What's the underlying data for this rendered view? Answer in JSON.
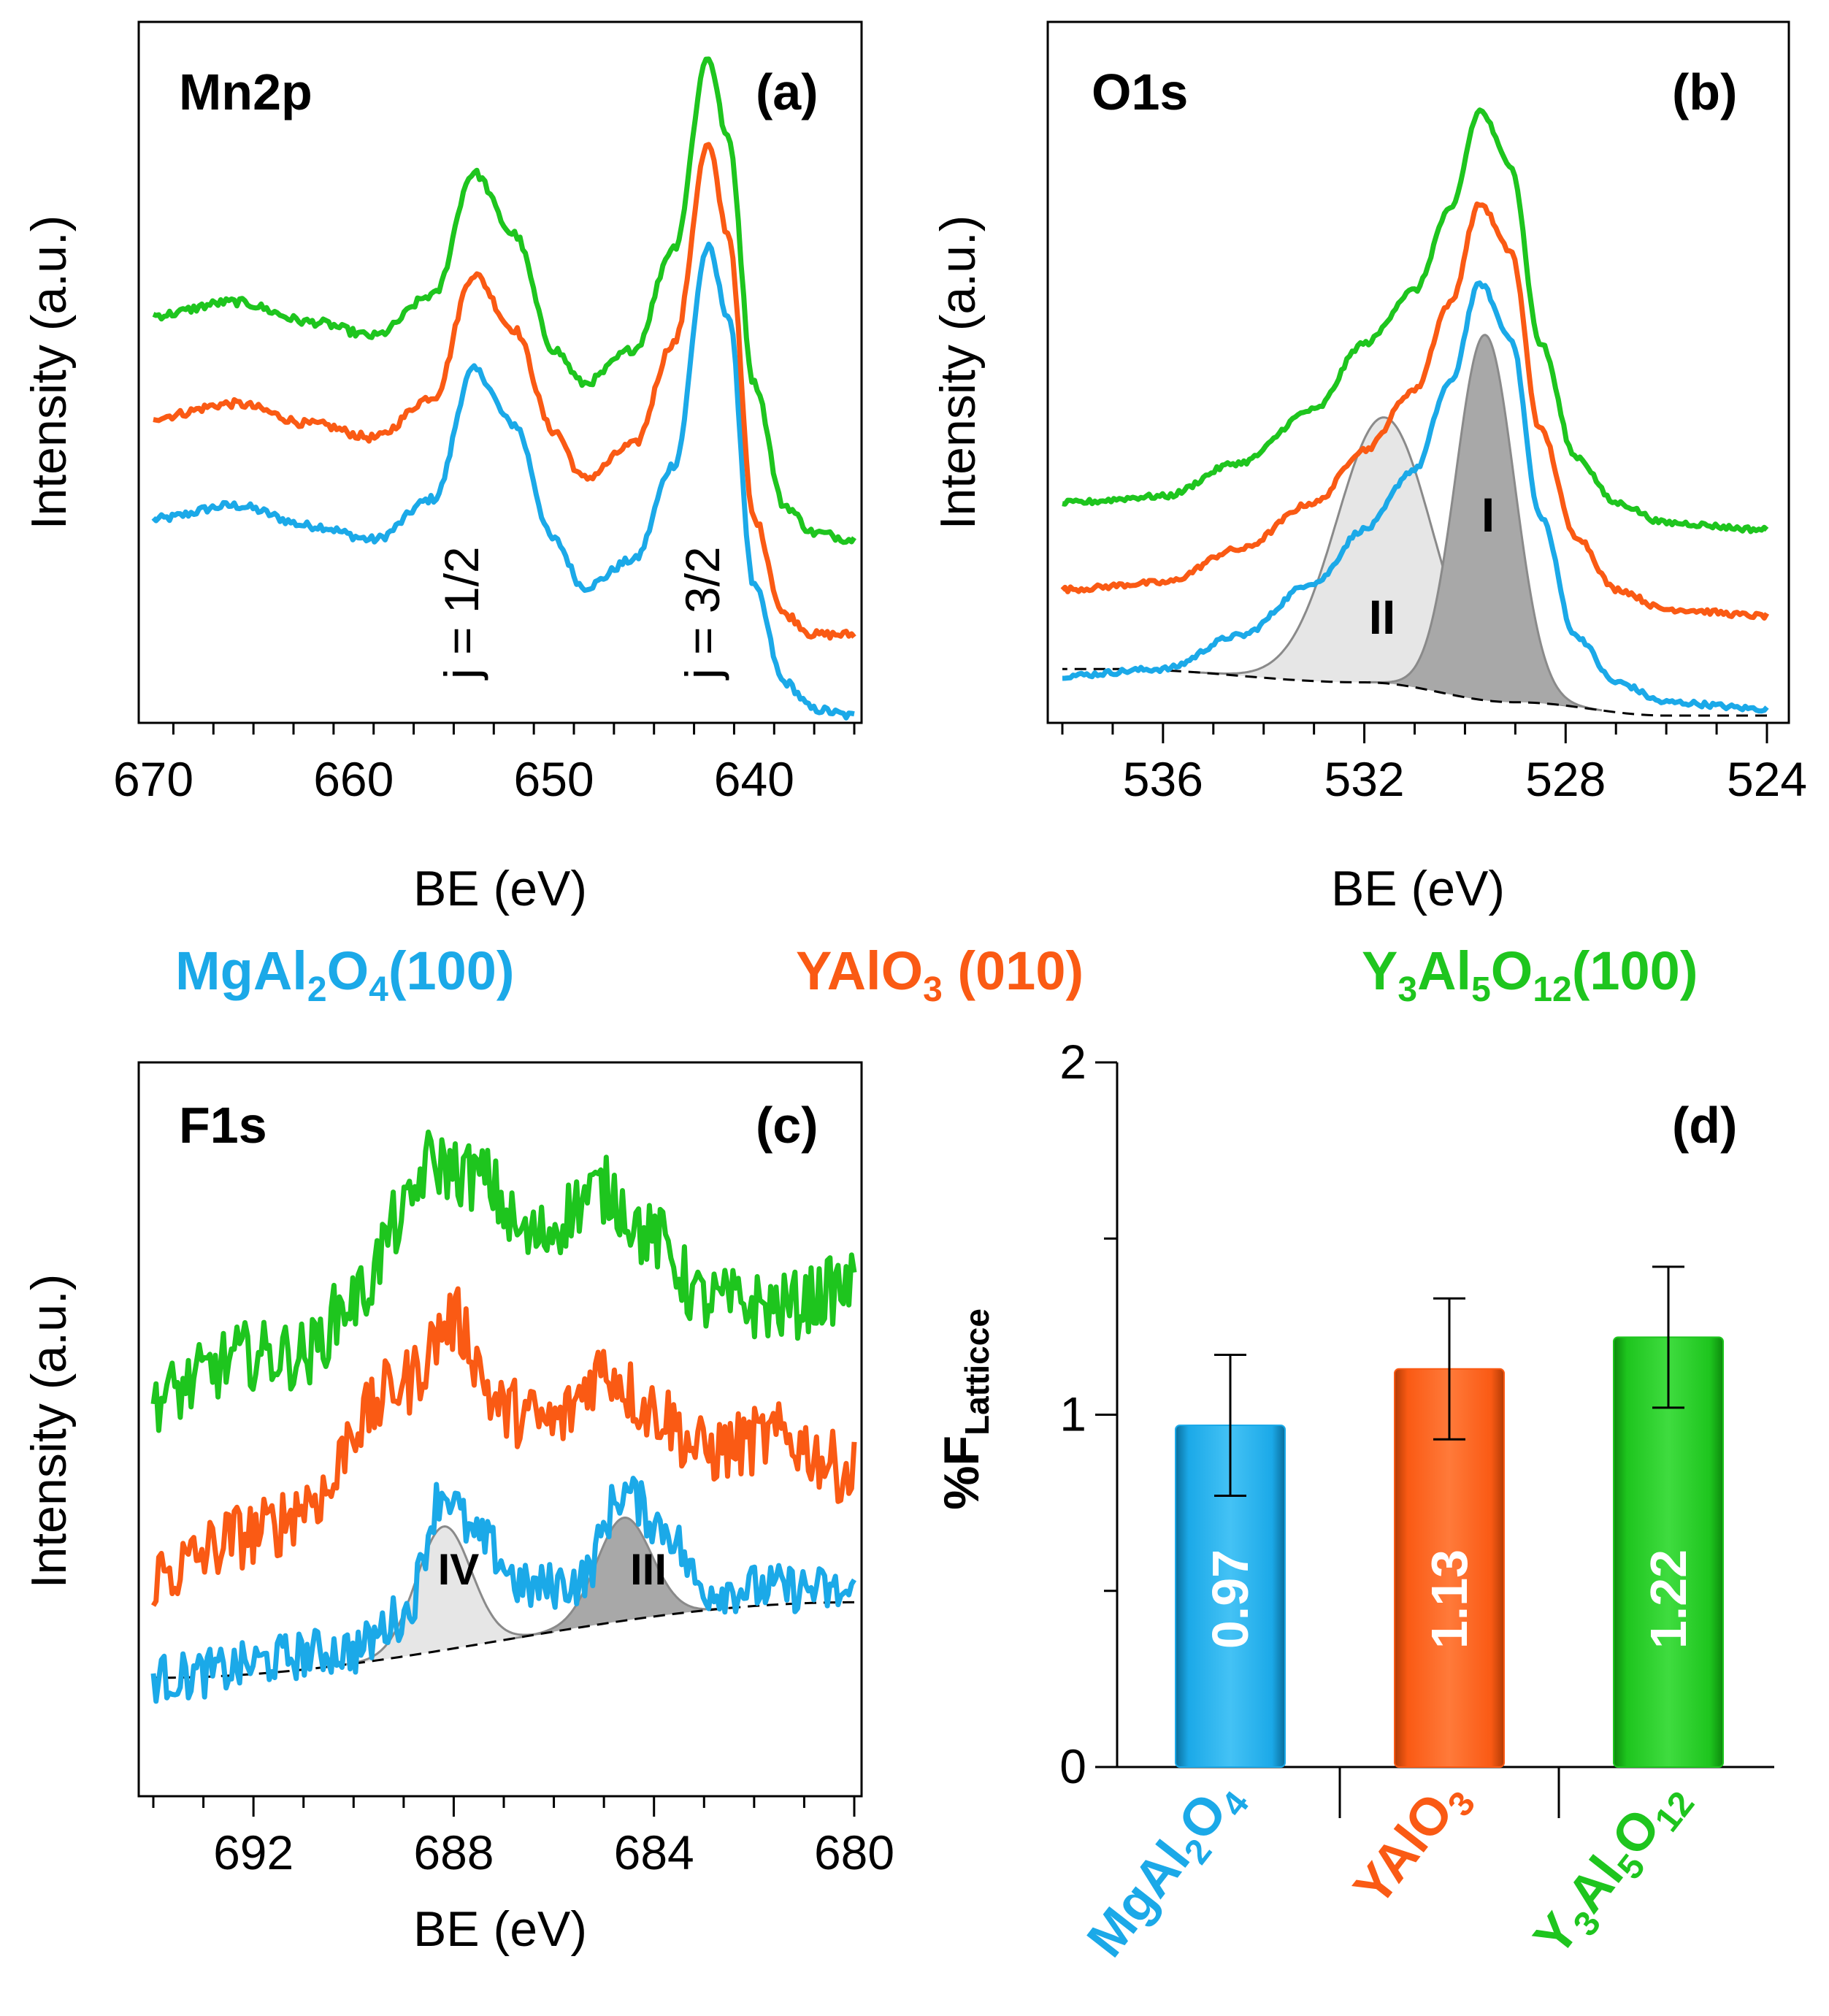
{
  "colors": {
    "mgal2o4": "#1ba9e8",
    "yalo3": "#fa5a14",
    "yag": "#1ec51e",
    "axis": "#000000",
    "fill_light": "#e6e6e6",
    "fill_dark": "#a8a8a8",
    "fit_line": "#8a8a8a"
  },
  "legend": {
    "mgal2o4": {
      "base": "MgAl",
      "s1": "2",
      "mid": "O",
      "s2": "4",
      "tail": "(100)"
    },
    "yalo3": {
      "base": "YAlO",
      "s1": "3",
      "tail": " (010)"
    },
    "yag": {
      "base": "Y",
      "s1": "3",
      "mid1": "Al",
      "s2": "5",
      "mid2": "O",
      "s3": "12",
      "tail": "(100)"
    }
  },
  "chart_data": [
    {
      "id": "a",
      "type": "line",
      "panel_label": "(a)",
      "element_label": "Mn2p",
      "xlabel": "BE (eV)",
      "ylabel": "Intensity (a.u.)",
      "xlim": [
        670,
        635
      ],
      "xticks": [
        670,
        660,
        650,
        640
      ],
      "xtick_labels": [
        "670",
        "660",
        "650",
        "640"
      ],
      "minor_step": 2,
      "ylim": [
        0,
        1
      ],
      "annotations": [
        {
          "text": "j = 1/2",
          "x": 654,
          "y": 0.05,
          "rotation": -90
        },
        {
          "text": "j = 3/2",
          "x": 642.3,
          "y": 0.05,
          "rotation": -90
        }
      ],
      "series": [
        {
          "name": "MgAl2O4(100)",
          "color_key": "mgal2o4",
          "noise": 0.006,
          "points": [
            [
              670,
              0.3
            ],
            [
              666,
              0.32
            ],
            [
              662,
              0.29
            ],
            [
              659,
              0.27
            ],
            [
              656,
              0.33
            ],
            [
              654,
              0.52
            ],
            [
              652,
              0.44
            ],
            [
              650,
              0.27
            ],
            [
              648.5,
              0.2
            ],
            [
              646,
              0.24
            ],
            [
              644,
              0.38
            ],
            [
              642.3,
              0.7
            ],
            [
              641.3,
              0.6
            ],
            [
              640,
              0.2
            ],
            [
              638.5,
              0.06
            ],
            [
              637,
              0.02
            ],
            [
              635,
              0.01
            ]
          ]
        },
        {
          "name": "YAlO3 (010)",
          "color_key": "yalo3",
          "noise": 0.006,
          "points": [
            [
              670,
              0.45
            ],
            [
              666,
              0.47
            ],
            [
              662,
              0.44
            ],
            [
              659,
              0.42
            ],
            [
              656,
              0.48
            ],
            [
              654,
              0.66
            ],
            [
              652,
              0.58
            ],
            [
              650,
              0.43
            ],
            [
              648.5,
              0.36
            ],
            [
              646,
              0.41
            ],
            [
              644,
              0.56
            ],
            [
              642.3,
              0.85
            ],
            [
              641.3,
              0.72
            ],
            [
              640,
              0.3
            ],
            [
              638.5,
              0.16
            ],
            [
              637,
              0.13
            ],
            [
              635,
              0.13
            ]
          ]
        },
        {
          "name": "Y3Al5O12(100)",
          "color_key": "yag",
          "noise": 0.006,
          "points": [
            [
              670,
              0.6
            ],
            [
              666,
              0.62
            ],
            [
              662,
              0.59
            ],
            [
              659,
              0.57
            ],
            [
              656,
              0.63
            ],
            [
              654,
              0.81
            ],
            [
              652,
              0.72
            ],
            [
              650,
              0.55
            ],
            [
              648.5,
              0.5
            ],
            [
              646,
              0.55
            ],
            [
              644,
              0.7
            ],
            [
              642.3,
              0.98
            ],
            [
              641.3,
              0.86
            ],
            [
              640,
              0.5
            ],
            [
              638.5,
              0.32
            ],
            [
              637,
              0.28
            ],
            [
              635,
              0.27
            ]
          ]
        }
      ]
    },
    {
      "id": "b",
      "type": "line",
      "panel_label": "(b)",
      "element_label": "O1s",
      "xlabel": "BE (eV)",
      "ylabel": "Intensity (a.u.)",
      "xlim": [
        538,
        524
      ],
      "xticks": [
        536,
        532,
        528,
        524
      ],
      "xtick_labels": [
        "536",
        "532",
        "528",
        "524"
      ],
      "minor_step": 1,
      "ylim": [
        0,
        1
      ],
      "annotations": [
        {
          "text": "I",
          "x": 529.6,
          "y": 0.3
        },
        {
          "text": "II",
          "x": 531.6,
          "y": 0.14
        }
      ],
      "peaks": [
        {
          "label": "I",
          "center": 529.6,
          "height": 0.55,
          "sigma": 0.58,
          "fill_key": "fill_dark"
        },
        {
          "label": "II",
          "center": 531.6,
          "height": 0.4,
          "sigma": 0.95,
          "fill_key": "fill_light"
        }
      ],
      "baseline": {
        "points": [
          [
            537,
            0.07
          ],
          [
            532,
            0.05
          ],
          [
            529,
            0.02
          ],
          [
            526,
            0.0
          ]
        ]
      },
      "series": [
        {
          "name": "MgAl2O4(100)",
          "color_key": "mgal2o4",
          "noise": 0.004,
          "points": [
            [
              538,
              0.06
            ],
            [
              536,
              0.07
            ],
            [
              534.5,
              0.12
            ],
            [
              533,
              0.2
            ],
            [
              532,
              0.28
            ],
            [
              531,
              0.37
            ],
            [
              530.3,
              0.5
            ],
            [
              529.7,
              0.65
            ],
            [
              529.1,
              0.57
            ],
            [
              528.5,
              0.3
            ],
            [
              527.8,
              0.12
            ],
            [
              527,
              0.05
            ],
            [
              526,
              0.02
            ],
            [
              524,
              0.01
            ]
          ]
        },
        {
          "name": "YAlO3 (010)",
          "color_key": "yalo3",
          "noise": 0.004,
          "points": [
            [
              538,
              0.19
            ],
            [
              536,
              0.2
            ],
            [
              534.5,
              0.25
            ],
            [
              533,
              0.32
            ],
            [
              532,
              0.4
            ],
            [
              531,
              0.49
            ],
            [
              530.3,
              0.62
            ],
            [
              529.7,
              0.77
            ],
            [
              529.1,
              0.7
            ],
            [
              528.5,
              0.43
            ],
            [
              527.8,
              0.27
            ],
            [
              527,
              0.19
            ],
            [
              526,
              0.16
            ],
            [
              524,
              0.15
            ]
          ]
        },
        {
          "name": "Y3Al5O12(100)",
          "color_key": "yag",
          "noise": 0.004,
          "points": [
            [
              538,
              0.32
            ],
            [
              536,
              0.33
            ],
            [
              534.5,
              0.38
            ],
            [
              533,
              0.46
            ],
            [
              532,
              0.56
            ],
            [
              531,
              0.64
            ],
            [
              530.3,
              0.76
            ],
            [
              529.7,
              0.91
            ],
            [
              529.1,
              0.83
            ],
            [
              528.5,
              0.56
            ],
            [
              527.8,
              0.39
            ],
            [
              527,
              0.32
            ],
            [
              526,
              0.29
            ],
            [
              524,
              0.28
            ]
          ]
        }
      ]
    },
    {
      "id": "c",
      "type": "line",
      "panel_label": "(c)",
      "element_label": "F1s",
      "xlabel": "BE (eV)",
      "ylabel": "Intensity (a.u.)",
      "xlim": [
        694,
        680
      ],
      "xticks": [
        692,
        688,
        684,
        680
      ],
      "xtick_labels": [
        "692",
        "688",
        "684",
        "680"
      ],
      "minor_step": 1,
      "ylim": [
        0,
        1
      ],
      "annotations": [
        {
          "text": "IV",
          "x": 687.9,
          "y": 0.27
        },
        {
          "text": "III",
          "x": 684.3,
          "y": 0.27
        }
      ],
      "peaks": [
        {
          "label": "IV",
          "center": 688.2,
          "height": 0.18,
          "sigma": 0.55,
          "fill_key": "fill_light"
        },
        {
          "label": "III",
          "center": 684.6,
          "height": 0.15,
          "sigma": 0.55,
          "fill_key": "fill_dark"
        }
      ],
      "baseline": {
        "points": [
          [
            694,
            0.13
          ],
          [
            680,
            0.24
          ]
        ]
      },
      "series": [
        {
          "name": "MgAl2O4(100)",
          "color_key": "mgal2o4",
          "noise": 0.035,
          "points": [
            [
              694,
              0.13
            ],
            [
              690,
              0.17
            ],
            [
              689,
              0.22
            ],
            [
              688.2,
              0.4
            ],
            [
              687.5,
              0.33
            ],
            [
              686.5,
              0.26
            ],
            [
              685.5,
              0.27
            ],
            [
              684.6,
              0.4
            ],
            [
              683.8,
              0.35
            ],
            [
              683,
              0.26
            ],
            [
              681,
              0.26
            ],
            [
              680,
              0.25
            ]
          ]
        },
        {
          "name": "YAlO3 (010)",
          "color_key": "yalo3",
          "noise": 0.05,
          "points": [
            [
              694,
              0.28
            ],
            [
              692,
              0.34
            ],
            [
              690.5,
              0.4
            ],
            [
              690,
              0.5
            ],
            [
              689,
              0.56
            ],
            [
              688,
              0.65
            ],
            [
              687,
              0.52
            ],
            [
              686,
              0.5
            ],
            [
              685,
              0.58
            ],
            [
              684,
              0.52
            ],
            [
              683,
              0.46
            ],
            [
              681.5,
              0.48
            ],
            [
              680,
              0.43
            ]
          ]
        },
        {
          "name": "Y3Al5O12(100)",
          "color_key": "yag",
          "noise": 0.05,
          "points": [
            [
              694,
              0.54
            ],
            [
              692,
              0.6
            ],
            [
              691,
              0.6
            ],
            [
              690,
              0.68
            ],
            [
              689,
              0.8
            ],
            [
              688.5,
              0.88
            ],
            [
              687.5,
              0.86
            ],
            [
              686.5,
              0.77
            ],
            [
              685,
              0.84
            ],
            [
              684,
              0.77
            ],
            [
              683,
              0.68
            ],
            [
              681.5,
              0.67
            ],
            [
              680,
              0.7
            ]
          ]
        }
      ]
    },
    {
      "id": "d",
      "type": "bar",
      "panel_label": "(d)",
      "ylabel": {
        "base": "%F",
        "sub": "Latticce"
      },
      "ylim": [
        0,
        2
      ],
      "yticks": [
        0,
        1,
        2
      ],
      "ytick_labels": [
        "0",
        "1",
        "2"
      ],
      "minor_yticks": [
        0.5,
        1.5
      ],
      "categories": [
        {
          "base": "MgAl",
          "s1": "2",
          "mid": "O",
          "s2": "4",
          "color_key": "mgal2o4"
        },
        {
          "base": "YAlO",
          "s1": "3",
          "color_key": "yalo3"
        },
        {
          "base": "Y",
          "s1": "3",
          "mid1": "Al",
          "s2": "5",
          "mid2": "O",
          "s3": "12",
          "color_key": "yag"
        }
      ],
      "values": [
        0.97,
        1.13,
        1.22
      ],
      "value_labels": [
        "0.97",
        "1.13",
        "1.22"
      ],
      "errors": [
        0.2,
        0.2,
        0.2
      ]
    }
  ]
}
